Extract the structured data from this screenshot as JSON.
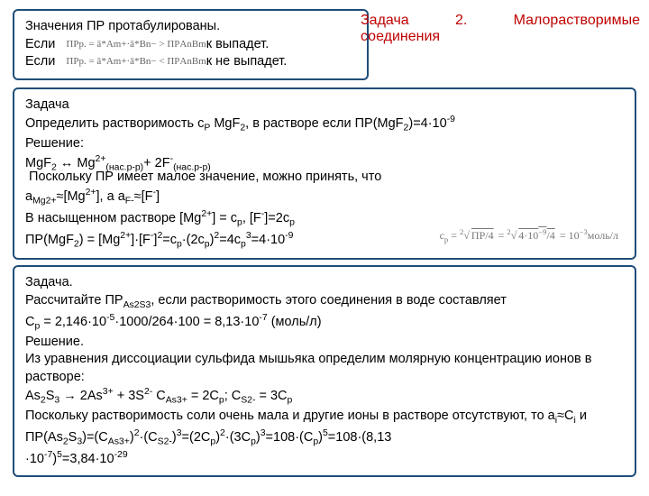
{
  "header": {
    "word1": "Задача",
    "word2": "2.",
    "word3": "Малорастворимые",
    "line2": "соединения"
  },
  "box1": {
    "l1": "Значения ПР протабулированы.",
    "l2a": "Если",
    "l2f": "ПРр. = ā*Am+·ā*Bn− > ПРAnBm",
    "l2b": "к выпадет.",
    "l3a": "Если",
    "l3f": "ПРр. = ā*Am+·ā*Bn− < ПРAnBm",
    "l3b": "к не выпадет."
  },
  "box2": {
    "l1": "Задача",
    "l2a": "Определить растворимость c",
    "l2b": " MgF",
    "l2c": ", в растворе если ПР(MgF",
    "l2d": ")=4·10",
    "l3": "Решение:",
    "l4a": "MgF",
    "l4b": " ↔ Mg",
    "l4c": "(нас.р-р)",
    "l4d": "+ 2F",
    "l4e": "(нас.р-р)",
    "l5": " Поскольку ПР имеет малое значение, можно принять, что",
    "l6a": "a",
    "l6b": "≈[Mg",
    "l6c": "], а a",
    "l6d": "≈[F",
    "l6e": "]",
    "l7a": "В насыщенном растворе [Mg",
    "l7b": "] = c",
    "l7c": ", [F",
    "l7d": "]=2c",
    "l8a": "ПР(MgF",
    "l8b": ") = [Mg",
    "l8c": "]·[F",
    "l8d": "]",
    "l8e": "=c",
    "l8f": "·(2c",
    "l8g": ")",
    "l8h": "=4c",
    "l8i": "=4·10",
    "cpf": "cₚ = ²√(ПР/4) = ²√(4·10⁻⁹/4) = 10⁻³моль/л"
  },
  "box3": {
    "l1": "Задача.",
    "l2a": "Рассчитайте ПР",
    "l2b": ", если растворимость этого соединения в воде составляет",
    "l3a": "C",
    "l3b": " = 2,146·10",
    "l3c": "·1000/264·100 = 8,13·10",
    "l3d": " (моль/л)",
    "l4": "Решение.",
    "l5": "Из уравнения диссоциации сульфида мышьяка определим молярную концентрацию ионов в растворе:",
    "l6a": "As",
    "l6b": "S",
    "l6c": " → 2As",
    "l6d": " + 3S",
    "l6e": " C",
    "l6f": " = 2C",
    "l6g": "; C",
    "l6h": " = 3C",
    "l7a": "Поскольку растворимость соли очень мала и другие ионы в растворе отсутствуют, то a",
    "l7b": "≈C",
    "l7c": " и ПР(As",
    "l7d": "S",
    "l7e": ")=(C",
    "l7f": ")",
    "l7g": "·(C",
    "l7h": ")",
    "l7i": "=(2C",
    "l7j": ")",
    "l7k": "·(3C",
    "l7l": ")",
    "l7m": "=108·(C",
    "l7n": ")",
    "l7o": "=108·(8,13",
    "l8a": "·10",
    "l8b": ")",
    "l8c": "=3,84·10"
  }
}
